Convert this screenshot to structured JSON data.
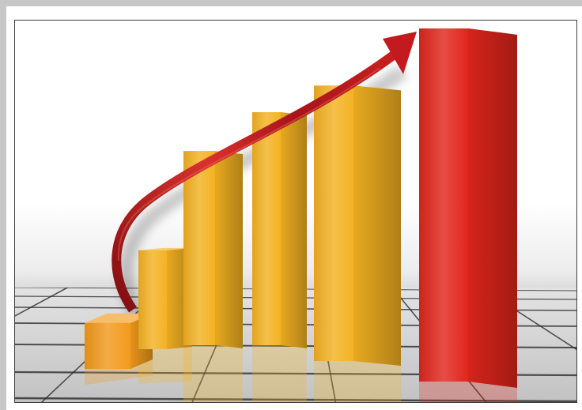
{
  "chart_data": {
    "type": "bar",
    "style": "3d",
    "values": [
      13,
      28,
      55,
      66,
      78,
      100
    ],
    "bar_colors": [
      "#f29a1c",
      "#f3b222",
      "#f3b222",
      "#f3b222",
      "#f3b222",
      "#e1261c"
    ],
    "grid": true,
    "legend": "none",
    "trend_arrow": {
      "direction": "up",
      "color": "#c21a1f"
    }
  }
}
